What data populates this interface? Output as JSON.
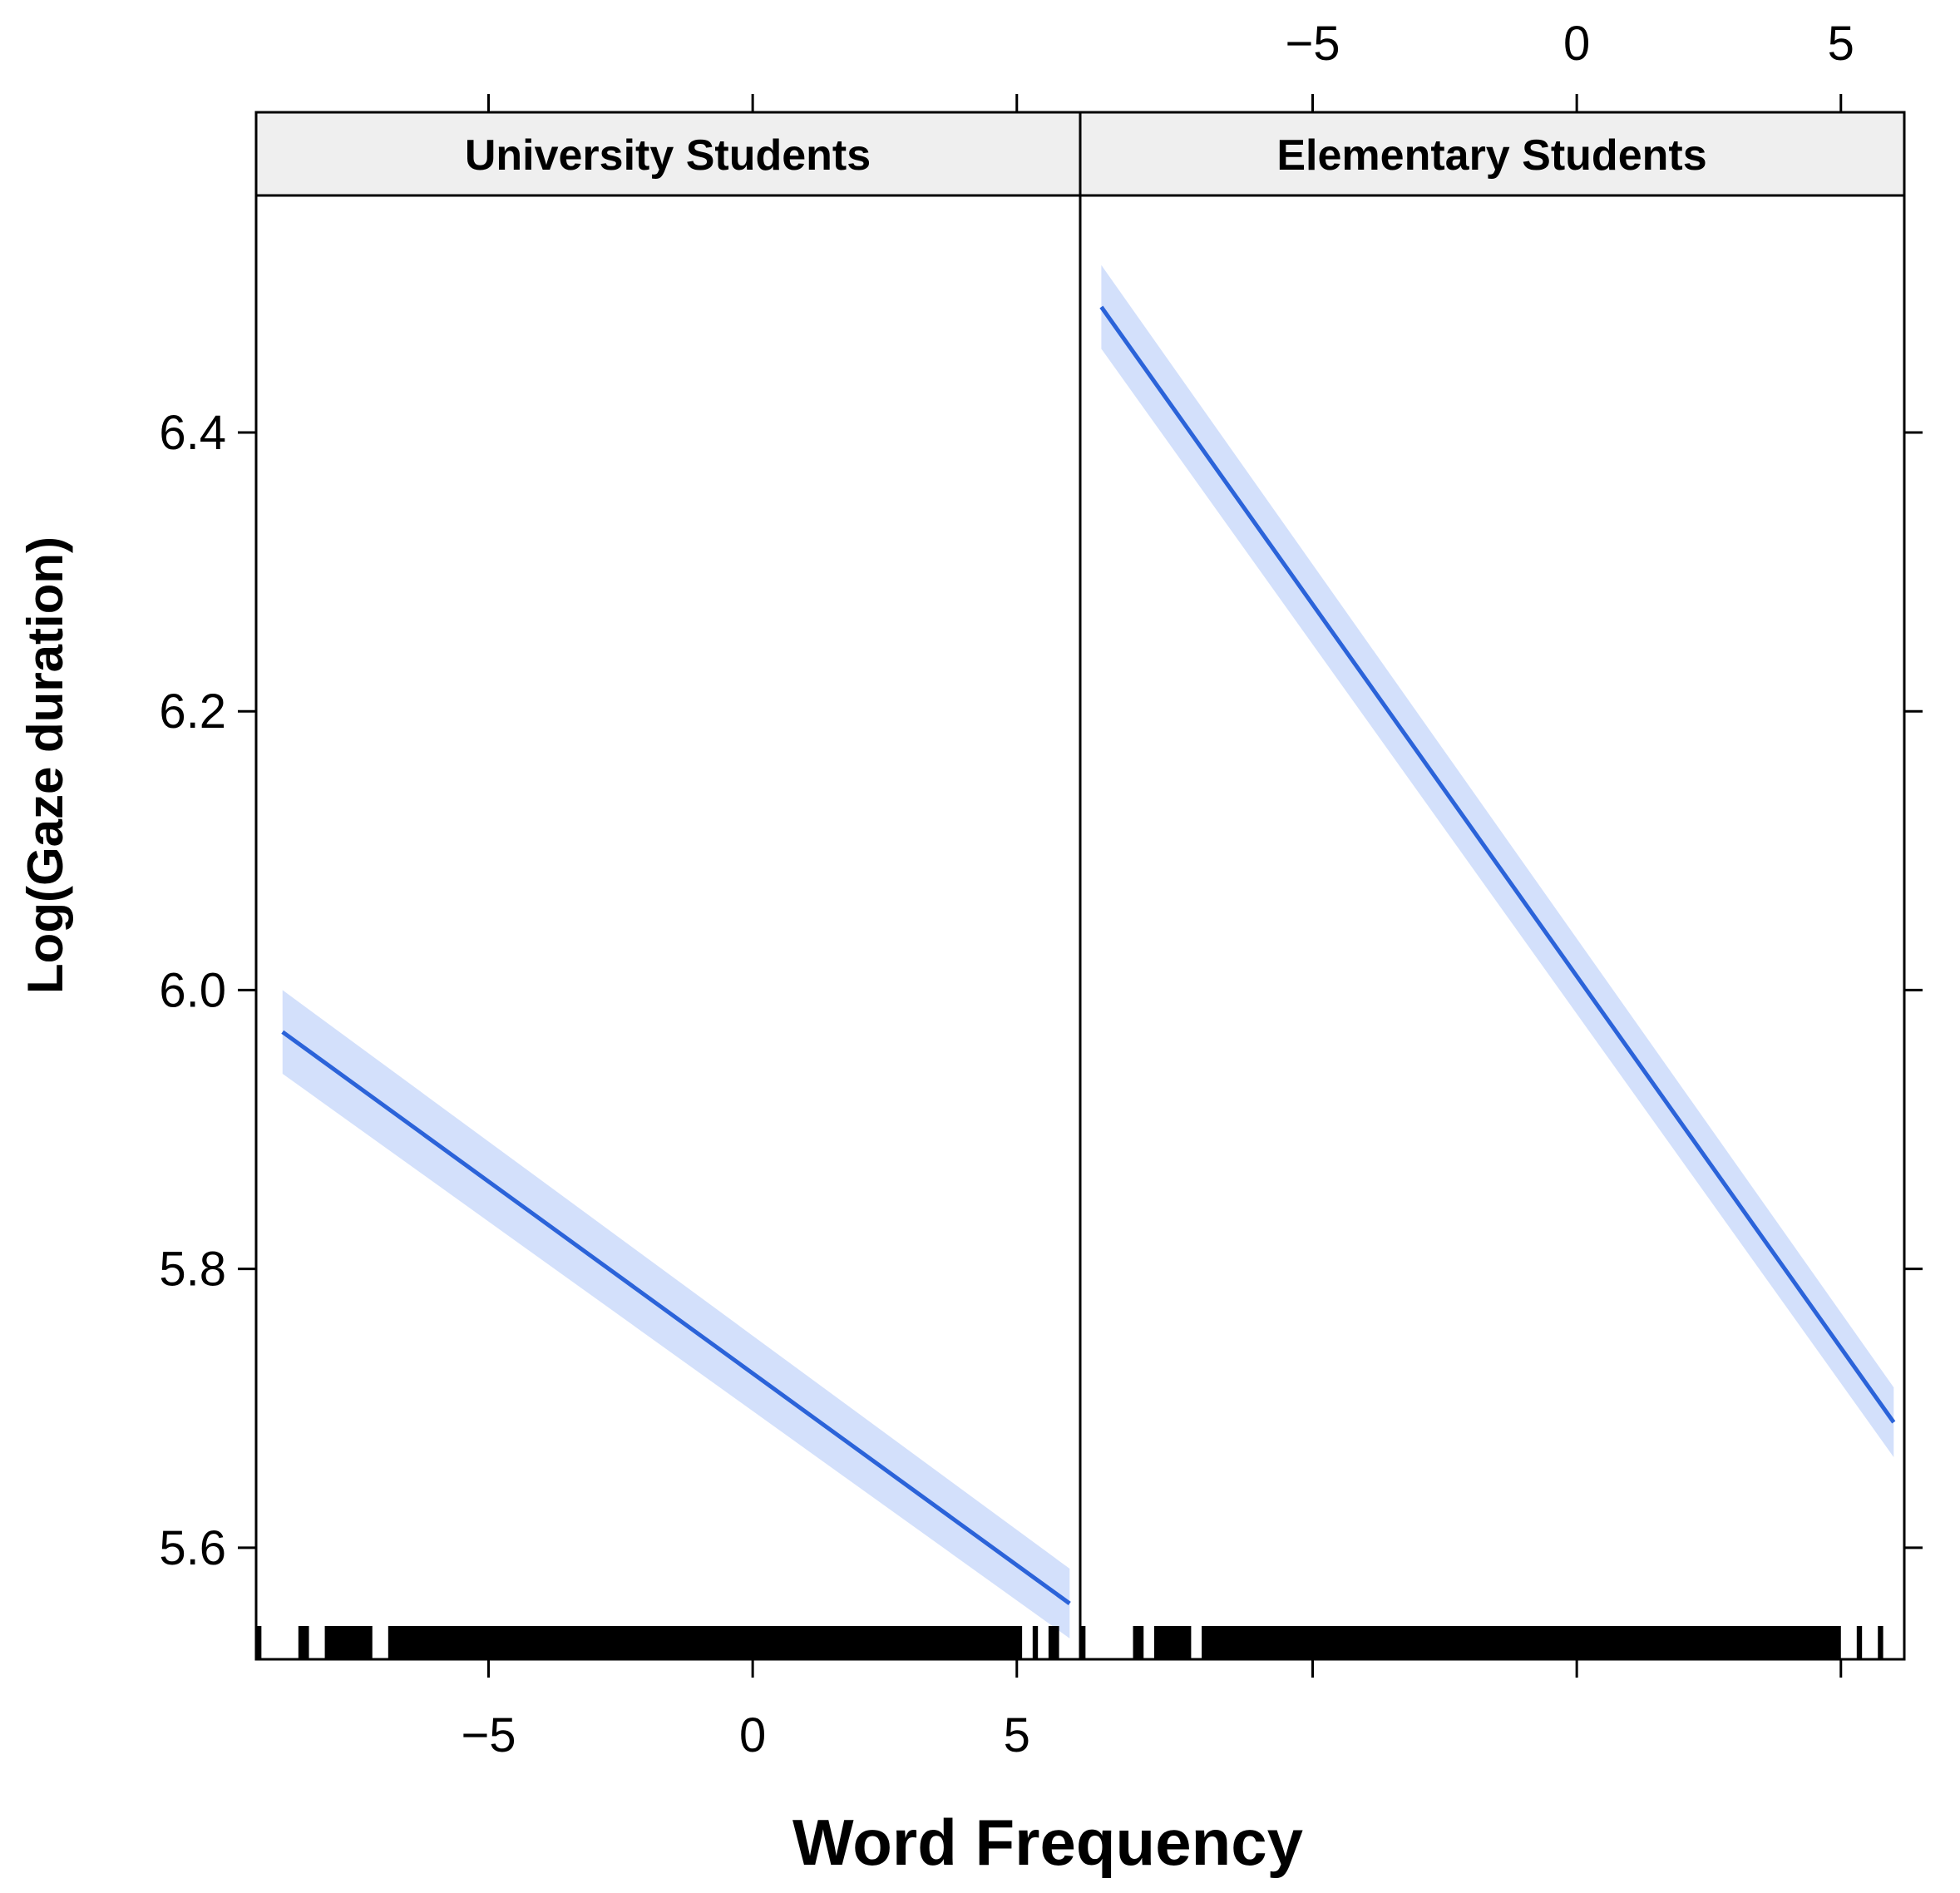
{
  "chart_data": {
    "type": "line",
    "xlabel": "Word Frequency",
    "ylabel": "Log(Gaze duration)",
    "ylim": [
      5.52,
      6.57
    ],
    "yticks": [
      5.6,
      5.8,
      6.0,
      6.2,
      6.4
    ],
    "ytick_labels": [
      "5.6",
      "5.8",
      "6.0",
      "6.2",
      "6.4"
    ],
    "xticks": [
      -5,
      0,
      5
    ],
    "xtick_labels": [
      "−5",
      "0",
      "5"
    ],
    "xlim": [
      -9.4,
      6.2
    ],
    "colors": {
      "line": "#2b63d9",
      "band": "#d3e0fb",
      "strip": "#efefef"
    },
    "panels": [
      {
        "name": "University Students",
        "line": {
          "x": [
            -8.9,
            6.0
          ],
          "y": [
            5.97,
            5.56
          ]
        },
        "band": {
          "x": [
            -8.9,
            6.0
          ],
          "upper": [
            6.0,
            5.585
          ],
          "lower": [
            5.94,
            5.535
          ]
        },
        "rug": [
          [
            -9.4,
            -9.3
          ],
          [
            -8.6,
            -8.4
          ],
          [
            -8.1,
            -7.2
          ],
          [
            -6.9,
            5.1
          ],
          [
            5.3,
            5.4
          ],
          [
            5.6,
            5.8
          ]
        ]
      },
      {
        "name": "Elementary Students",
        "line": {
          "x": [
            -9.0,
            6.0
          ],
          "y": [
            6.49,
            5.69
          ]
        },
        "band": {
          "x": [
            -9.0,
            6.0
          ],
          "upper": [
            6.52,
            5.715
          ],
          "lower": [
            6.46,
            5.665
          ]
        },
        "rug": [
          [
            -9.4,
            -9.3
          ],
          [
            -8.4,
            -8.2
          ],
          [
            -8.0,
            -7.3
          ],
          [
            -7.1,
            5.0
          ],
          [
            5.3,
            5.4
          ],
          [
            5.7,
            5.8
          ]
        ]
      }
    ]
  }
}
